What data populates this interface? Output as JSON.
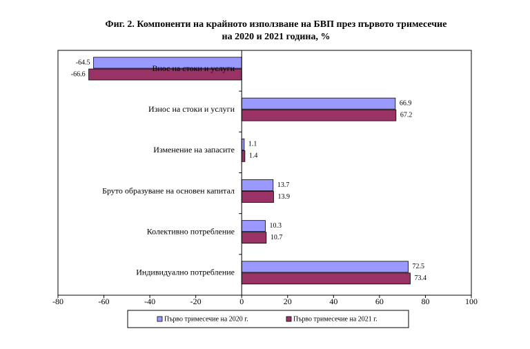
{
  "chart_data": {
    "type": "hbar",
    "title": [
      "Фиг. 2. Компоненти на крайното използване на БВП през първото тримесечие",
      "на 2020 и 2021 година, %"
    ],
    "categories": [
      "Внос на стоки и услуги",
      "Износ на стоки и услуги",
      "Изменение на запасите",
      "Бруто образуване на основен капитал",
      "Колективно потребление",
      "Индивидуално потребление"
    ],
    "series": [
      {
        "name": "Първо тримесечие на 2020 г.",
        "color": "#9999ff",
        "values": [
          -64.5,
          66.9,
          1.1,
          13.7,
          10.3,
          72.5
        ]
      },
      {
        "name": "Първо тримесечие на 2021 г.",
        "color": "#993366",
        "values": [
          -66.6,
          67.2,
          1.4,
          13.9,
          10.7,
          73.4
        ]
      }
    ],
    "xlim": [
      -80,
      100
    ],
    "xticks": [
      -80,
      -60,
      -40,
      -20,
      0,
      20,
      40,
      60,
      80,
      100
    ],
    "grid": false
  }
}
